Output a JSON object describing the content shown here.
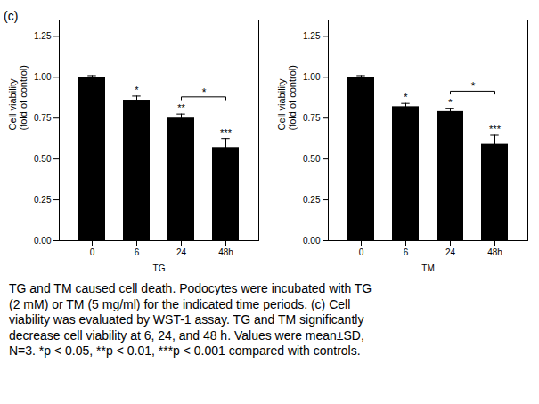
{
  "chart_data": [
    {
      "type": "bar",
      "categories": [
        "0",
        "6",
        "24",
        "48h"
      ],
      "values": [
        1.0,
        0.86,
        0.75,
        0.57
      ],
      "errors": [
        0.01,
        0.025,
        0.025,
        0.055
      ],
      "color": "#000000",
      "x_label": "TG",
      "y_label": "Cell viability\n(fold of control)",
      "ylim": [
        0,
        1.35
      ],
      "yticks": [
        {
          "value": 0.0,
          "label": "0.00"
        },
        {
          "value": 0.25,
          "label": "0.25"
        },
        {
          "value": 0.5,
          "label": "0.50"
        },
        {
          "value": 0.75,
          "label": "0.75"
        },
        {
          "value": 1.0,
          "label": "1.00"
        },
        {
          "value": 1.25,
          "label": "1.25"
        }
      ],
      "grid": false,
      "annotations": [
        {
          "category": "6",
          "text": "*"
        },
        {
          "category": "24",
          "text": "**"
        },
        {
          "category": "48h",
          "text": "***"
        }
      ],
      "brackets": [
        {
          "from": "24",
          "to": "48h",
          "text": "*"
        }
      ]
    },
    {
      "type": "bar",
      "categories": [
        "0",
        "6",
        "24",
        "48h"
      ],
      "values": [
        1.0,
        0.82,
        0.79,
        0.59
      ],
      "errors": [
        0.01,
        0.02,
        0.02,
        0.055
      ],
      "color": "#000000",
      "x_label": "TM",
      "y_label": "Cell viability\n(fold of control)",
      "ylim": [
        0,
        1.35
      ],
      "yticks": [
        {
          "value": 0.0,
          "label": "0.00"
        },
        {
          "value": 0.25,
          "label": "0.25"
        },
        {
          "value": 0.5,
          "label": "0.50"
        },
        {
          "value": 0.75,
          "label": "0.75"
        },
        {
          "value": 1.0,
          "label": "1.00"
        },
        {
          "value": 1.25,
          "label": "1.25"
        }
      ],
      "grid": false,
      "annotations": [
        {
          "category": "6",
          "text": "*"
        },
        {
          "category": "24",
          "text": "*"
        },
        {
          "category": "48h",
          "text": "***"
        }
      ],
      "brackets": [
        {
          "from": "24",
          "to": "48h",
          "text": "*"
        }
      ]
    }
  ],
  "annotations": [
    {
      "text": "(c)"
    }
  ],
  "caption": [
    "TG and TM caused cell death. Podocytes were incubated with TG",
    "(2 mM) or TM (5 mg/ml) for the indicated time periods. (c) Cell",
    "viability was evaluated by WST-1 assay. TG and TM significantly",
    "decrease cell viability at 6, 24, and 48 h. Values were mean±SD,",
    "N=3. *p < 0.05, **p < 0.01, ***p < 0.001 compared with controls."
  ]
}
